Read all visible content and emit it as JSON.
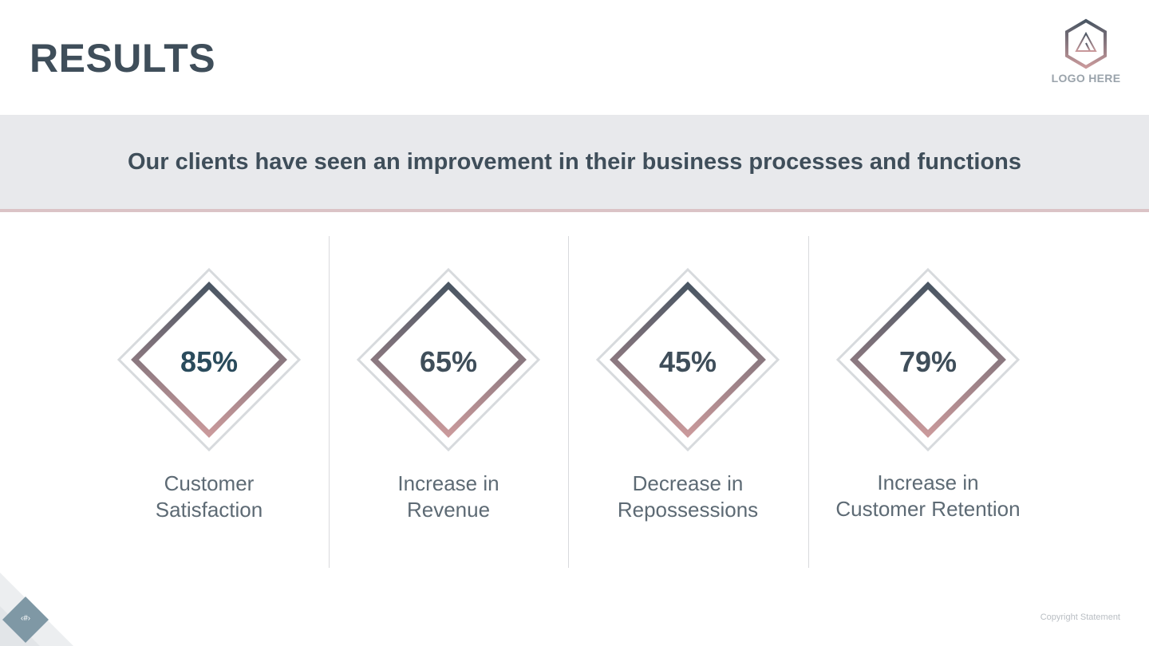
{
  "slide": {
    "title": "RESULTS",
    "subtitle": "Our clients have seen an improvement in their business processes and functions",
    "logo_text": "LOGO HERE",
    "page_number": "‹#›",
    "copyright": "Copyright  Statement"
  },
  "stats": [
    {
      "value": "85%",
      "label": "Customer\nSatisfaction"
    },
    {
      "value": "65%",
      "label": "Increase in\nRevenue"
    },
    {
      "value": "45%",
      "label": "Decrease in\nRepossessions"
    },
    {
      "value": "79%",
      "label": "Increase in\nCustomer Retention"
    }
  ],
  "colors": {
    "title": "#3f4e5a",
    "band": "#e8e9ec",
    "band_line": "#dbc3c6",
    "gradient_top": "#4a5663",
    "gradient_bottom": "#c9999b",
    "outer_diamond": "#d7dadd"
  }
}
